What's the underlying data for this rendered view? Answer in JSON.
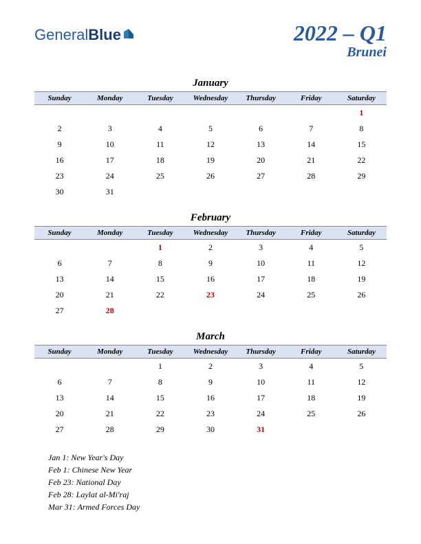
{
  "logo": {
    "part1": "General",
    "part2": "Blue"
  },
  "title": {
    "main": "2022 – Q1",
    "sub": "Brunei"
  },
  "dayHeaders": [
    "Sunday",
    "Monday",
    "Tuesday",
    "Wednesday",
    "Thursday",
    "Friday",
    "Saturday"
  ],
  "colors": {
    "headerBg": "#d9e3f2",
    "titleColor": "#2a5a9a",
    "holidayColor": "#c00000"
  },
  "months": [
    {
      "name": "January",
      "weeks": [
        [
          "",
          "",
          "",
          "",
          "",
          "",
          {
            "d": "1",
            "h": true
          }
        ],
        [
          "2",
          "3",
          "4",
          "5",
          "6",
          "7",
          "8"
        ],
        [
          "9",
          "10",
          "11",
          "12",
          "13",
          "14",
          "15"
        ],
        [
          "16",
          "17",
          "18",
          "19",
          "20",
          "21",
          "22"
        ],
        [
          "23",
          "24",
          "25",
          "26",
          "27",
          "28",
          "29"
        ],
        [
          "30",
          "31",
          "",
          "",
          "",
          "",
          ""
        ]
      ]
    },
    {
      "name": "February",
      "weeks": [
        [
          "",
          "",
          {
            "d": "1",
            "h": true
          },
          "2",
          "3",
          "4",
          "5"
        ],
        [
          "6",
          "7",
          "8",
          "9",
          "10",
          "11",
          "12"
        ],
        [
          "13",
          "14",
          "15",
          "16",
          "17",
          "18",
          "19"
        ],
        [
          "20",
          "21",
          "22",
          {
            "d": "23",
            "h": true
          },
          "24",
          "25",
          "26"
        ],
        [
          "27",
          {
            "d": "28",
            "h": true
          },
          "",
          "",
          "",
          "",
          ""
        ]
      ]
    },
    {
      "name": "March",
      "weeks": [
        [
          "",
          "",
          "1",
          "2",
          "3",
          "4",
          "5"
        ],
        [
          "6",
          "7",
          "8",
          "9",
          "10",
          "11",
          "12"
        ],
        [
          "13",
          "14",
          "15",
          "16",
          "17",
          "18",
          "19"
        ],
        [
          "20",
          "21",
          "22",
          "23",
          "24",
          "25",
          "26"
        ],
        [
          "27",
          "28",
          "29",
          "30",
          {
            "d": "31",
            "h": true
          },
          "",
          ""
        ]
      ]
    }
  ],
  "holidays": [
    "Jan 1: New Year's Day",
    "Feb 1: Chinese New Year",
    "Feb 23: National Day",
    "Feb 28: Laylat al-Mi'raj",
    "Mar 31: Armed Forces Day"
  ]
}
